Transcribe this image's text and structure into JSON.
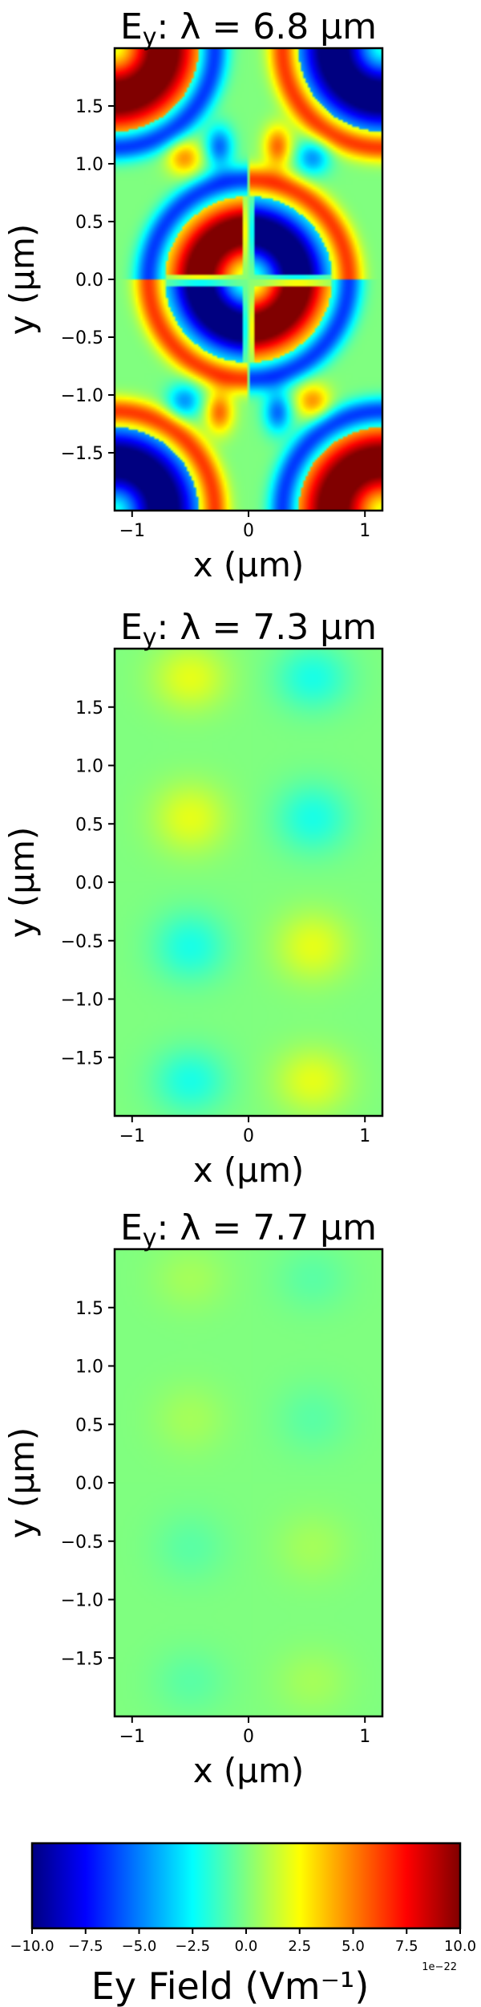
{
  "chart_data": [
    {
      "type": "heatmap",
      "title_prefix": "E",
      "title_sub": "y",
      "title_main": ":  λ = 6.8 μm",
      "xlabel": "x (μm)",
      "ylabel": "y (μm)",
      "xlim": [
        -1.15,
        1.15
      ],
      "ylim": [
        -2.0,
        2.0
      ],
      "xticks": [
        -1,
        0,
        1
      ],
      "xtick_labels": [
        "−1",
        "0",
        "1"
      ],
      "yticks": [
        -1.5,
        -1.0,
        -0.5,
        0.0,
        0.5,
        1.0,
        1.5
      ],
      "ytick_labels": [
        "−1.5",
        "−1.0",
        "−0.5",
        "0.0",
        "0.5",
        "1.0",
        "1.5"
      ],
      "amplitude": 1.0
    },
    {
      "type": "heatmap",
      "title_prefix": "E",
      "title_sub": "y",
      "title_main": ":  λ = 7.3 μm",
      "xlabel": "x (μm)",
      "ylabel": "y (μm)",
      "xlim": [
        -1.15,
        1.15
      ],
      "ylim": [
        -2.0,
        2.0
      ],
      "xticks": [
        -1,
        0,
        1
      ],
      "xtick_labels": [
        "−1",
        "0",
        "1"
      ],
      "yticks": [
        -1.5,
        -1.0,
        -0.5,
        0.0,
        0.5,
        1.0,
        1.5
      ],
      "ytick_labels": [
        "−1.5",
        "−1.0",
        "−0.5",
        "0.0",
        "0.5",
        "1.0",
        "1.5"
      ],
      "amplitude": 0.25
    },
    {
      "type": "heatmap",
      "title_prefix": "E",
      "title_sub": "y",
      "title_main": ":  λ = 7.7 μm",
      "xlabel": "x (μm)",
      "ylabel": "y (μm)",
      "xlim": [
        -1.15,
        1.15
      ],
      "ylim": [
        -2.0,
        2.0
      ],
      "xticks": [
        -1,
        0,
        1
      ],
      "xtick_labels": [
        "−1",
        "0",
        "1"
      ],
      "yticks": [
        -1.5,
        -1.0,
        -0.5,
        0.0,
        0.5,
        1.0,
        1.5
      ],
      "ytick_labels": [
        "−1.5",
        "−1.0",
        "−0.5",
        "0.0",
        "0.5",
        "1.0",
        "1.5"
      ],
      "amplitude": 0.09
    }
  ],
  "colorbar": {
    "label": "Ey  Field (Vm⁻¹)",
    "scale": "1e−22",
    "range": [
      -10.0,
      10.0
    ],
    "ticks": [
      -10.0,
      -7.5,
      -5.0,
      -2.5,
      0.0,
      2.5,
      5.0,
      7.5,
      10.0
    ],
    "tick_labels": [
      "−10.0",
      "−7.5",
      "−5.0",
      "−2.5",
      "0.0",
      "2.5",
      "5.0",
      "7.5",
      "10.0"
    ],
    "colormap": "jet",
    "colors": [
      "#00007f",
      "#0000ff",
      "#007fff",
      "#00ffff",
      "#7fff7f",
      "#ffff00",
      "#ff7f00",
      "#ff0000",
      "#7f0000"
    ]
  }
}
